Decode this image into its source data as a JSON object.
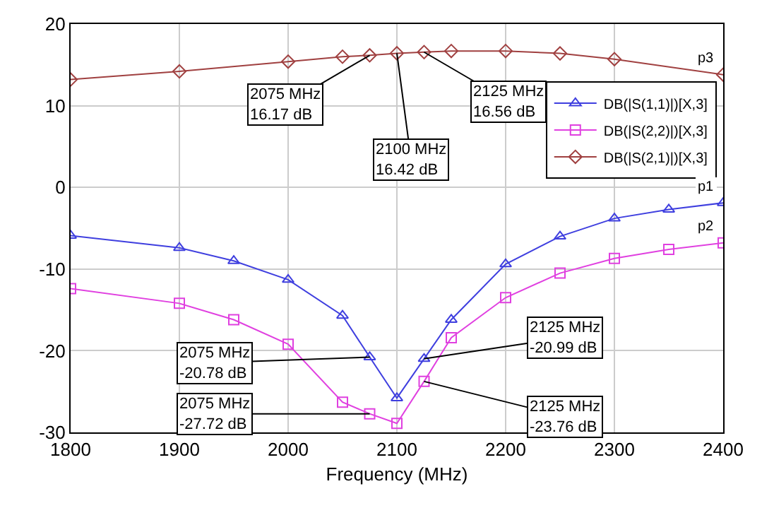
{
  "chart_data": {
    "type": "line",
    "xlabel": "Frequency (MHz)",
    "xlim": [
      1800,
      2400
    ],
    "xticks": [
      1800,
      1900,
      2000,
      2100,
      2200,
      2300,
      2400
    ],
    "ylim": [
      -30,
      20
    ],
    "yticks": [
      -30,
      -20,
      -10,
      0,
      10,
      20
    ],
    "grid": true,
    "legend": "top right",
    "series": [
      {
        "name": "DB(|S(1,1)|)[X,3]",
        "color": "#3f3fdf",
        "marker": "triangle",
        "x": [
          1800,
          1900,
          1950,
          2000,
          2050,
          2075,
          2100,
          2125,
          2150,
          2200,
          2250,
          2300,
          2350,
          2400
        ],
        "values": [
          -5.9,
          -7.4,
          -9,
          -11.3,
          -15.7,
          -20.78,
          -25.8,
          -20.99,
          -16.2,
          -9.4,
          -6,
          -3.8,
          -2.7,
          -1.9
        ]
      },
      {
        "name": "DB(|S(2,2)|)[X,3]",
        "color": "#e040e0",
        "marker": "square",
        "x": [
          1800,
          1900,
          1950,
          2000,
          2050,
          2075,
          2100,
          2125,
          2150,
          2200,
          2250,
          2300,
          2350,
          2400
        ],
        "values": [
          -12.4,
          -14.2,
          -16.2,
          -19.2,
          -26.3,
          -27.72,
          -28.9,
          -23.76,
          -18.4,
          -13.5,
          -10.5,
          -8.7,
          -7.6,
          -6.8
        ]
      },
      {
        "name": "DB(|S(2,1)|)[X,3]",
        "color": "#a04040",
        "marker": "diamond",
        "x": [
          1800,
          1900,
          2000,
          2050,
          2075,
          2100,
          2125,
          2150,
          2200,
          2250,
          2300,
          2400
        ],
        "values": [
          13.2,
          14.2,
          15.4,
          16,
          16.17,
          16.42,
          16.56,
          16.7,
          16.7,
          16.4,
          15.7,
          13.8
        ]
      }
    ],
    "annotations": [
      {
        "text": "2075 MHz\n16.17 dB",
        "x": 2075,
        "y": 16.17
      },
      {
        "text": "2100 MHz\n16.42 dB",
        "x": 2100,
        "y": 16.42
      },
      {
        "text": "2125 MHz\n16.56 dB",
        "x": 2125,
        "y": 16.56
      },
      {
        "text": "2075 MHz\n-20.78 dB",
        "x": 2075,
        "y": -20.78
      },
      {
        "text": "2125 MHz\n-20.99 dB",
        "x": 2125,
        "y": -20.99
      },
      {
        "text": "2075 MHz\n-27.72 dB",
        "x": 2075,
        "y": -27.72
      },
      {
        "text": "2125 MHz\n-23.76 dB",
        "x": 2125,
        "y": -23.76
      },
      {
        "text": "p1",
        "x": 2400,
        "y": -1.9
      },
      {
        "text": "p2",
        "x": 2400,
        "y": -6.8
      },
      {
        "text": "p3",
        "x": 2400,
        "y": 13.8
      }
    ]
  }
}
